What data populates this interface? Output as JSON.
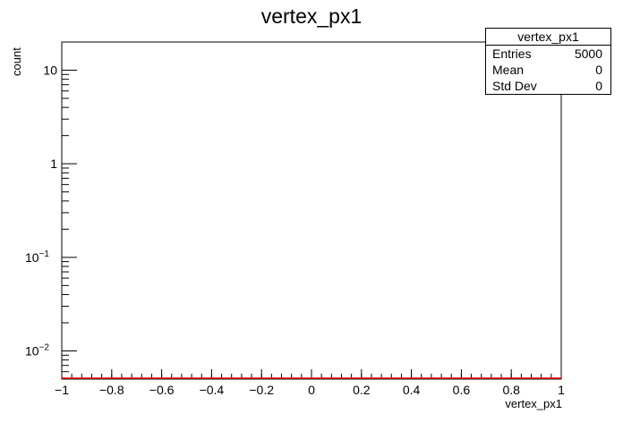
{
  "chart_data": {
    "type": "bar",
    "title": "vertex_px1",
    "xlabel": "vertex_px1",
    "ylabel": "count",
    "xlim": [
      -1,
      1
    ],
    "ylim": [
      0.005,
      20
    ],
    "yscale": "log",
    "x_ticks": [
      "−1",
      "−0.8",
      "−0.6",
      "−0.4",
      "−0.2",
      "0",
      "0.2",
      "0.4",
      "0.6",
      "0.8",
      "1"
    ],
    "y_ticks": [
      {
        "base": "10",
        "exp": "−2",
        "value": 0.01
      },
      {
        "base": "10",
        "exp": "−1",
        "value": 0.1
      },
      {
        "base": "1",
        "exp": "",
        "value": 1
      },
      {
        "base": "10",
        "exp": "",
        "value": 10
      }
    ],
    "series": [
      {
        "x": [
          -1,
          1
        ],
        "values": [
          0,
          0
        ],
        "color": "#ff0000"
      }
    ],
    "grid": false,
    "stats": {
      "name": "vertex_px1",
      "rows": [
        {
          "key": "Entries",
          "value": "5000"
        },
        {
          "key": "Mean",
          "value": "0"
        },
        {
          "key": "Std Dev",
          "value": "0"
        }
      ]
    }
  }
}
